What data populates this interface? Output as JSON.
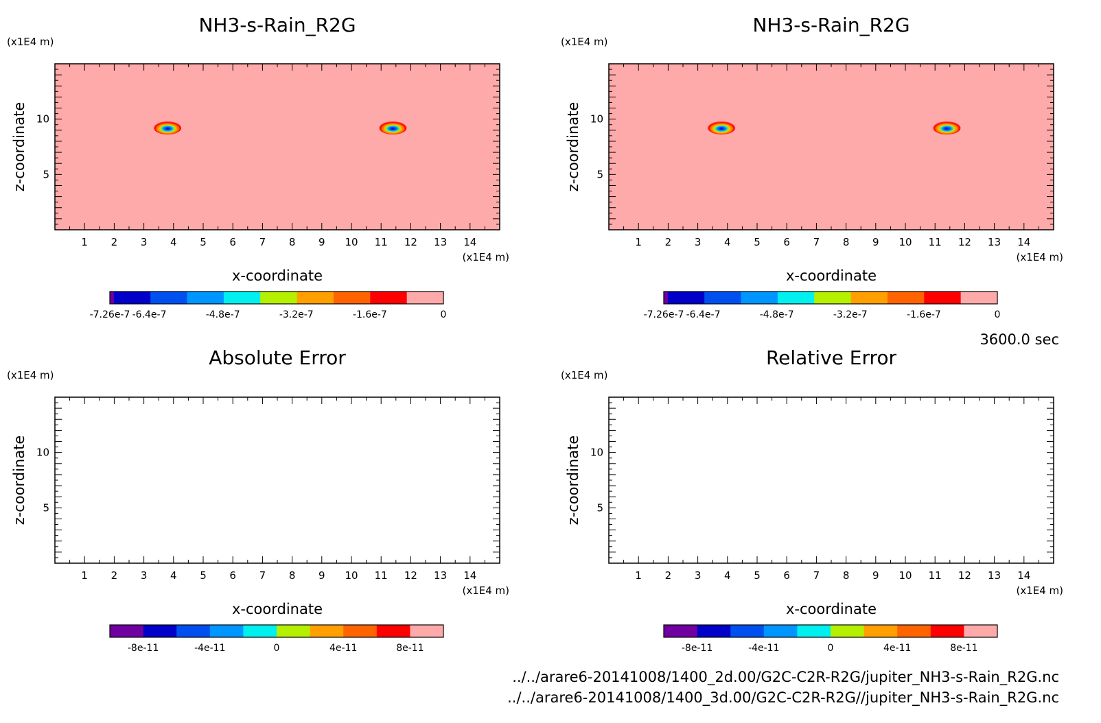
{
  "chart_data": [
    {
      "type": "heatmap",
      "title": "NH3-s-Rain_R2G",
      "xlabel": "x-coordinate",
      "ylabel": "z-coordinate",
      "x_unit": "(x1E4 m)",
      "y_unit": "(x1E4 m)",
      "xlim": [
        0,
        15
      ],
      "ylim": [
        0,
        15
      ],
      "xticks": [
        "1",
        "2",
        "3",
        "4",
        "5",
        "6",
        "7",
        "8",
        "9",
        "10",
        "11",
        "12",
        "13",
        "14"
      ],
      "yticks": [
        "5",
        "10"
      ],
      "background_color": "#ffaaaa",
      "features": [
        {
          "x": 3.8,
          "z": 9.2,
          "min_value": -7.26e-07
        },
        {
          "x": 11.4,
          "z": 9.2,
          "min_value": -7.26e-07
        }
      ],
      "colorbar": {
        "colors": [
          "#7000a0",
          "#0000c8",
          "#0050f0",
          "#0096ff",
          "#00f0f0",
          "#b4f000",
          "#ffa000",
          "#ff6400",
          "#ff0000",
          "#ffaaaa"
        ],
        "labels": [
          "-7.26e-7",
          "-6.4e-7",
          "-4.8e-7",
          "-3.2e-7",
          "-1.6e-7",
          "0"
        ],
        "min": -7.26e-07,
        "max": 0
      }
    },
    {
      "type": "heatmap",
      "title": "NH3-s-Rain_R2G",
      "xlabel": "x-coordinate",
      "ylabel": "z-coordinate",
      "x_unit": "(x1E4 m)",
      "y_unit": "(x1E4 m)",
      "xlim": [
        0,
        15
      ],
      "ylim": [
        0,
        15
      ],
      "xticks": [
        "1",
        "2",
        "3",
        "4",
        "5",
        "6",
        "7",
        "8",
        "9",
        "10",
        "11",
        "12",
        "13",
        "14"
      ],
      "yticks": [
        "5",
        "10"
      ],
      "background_color": "#ffaaaa",
      "features": [
        {
          "x": 3.8,
          "z": 9.2,
          "min_value": -7.26e-07
        },
        {
          "x": 11.4,
          "z": 9.2,
          "min_value": -7.26e-07
        }
      ],
      "colorbar": {
        "colors": [
          "#7000a0",
          "#0000c8",
          "#0050f0",
          "#0096ff",
          "#00f0f0",
          "#b4f000",
          "#ffa000",
          "#ff6400",
          "#ff0000",
          "#ffaaaa"
        ],
        "labels": [
          "-7.26e-7",
          "-6.4e-7",
          "-4.8e-7",
          "-3.2e-7",
          "-1.6e-7",
          "0"
        ],
        "min": -7.26e-07,
        "max": 0
      }
    },
    {
      "type": "heatmap",
      "title": "Absolute Error",
      "xlabel": "x-coordinate",
      "ylabel": "z-coordinate",
      "x_unit": "(x1E4 m)",
      "y_unit": "(x1E4 m)",
      "xlim": [
        0,
        15
      ],
      "ylim": [
        0,
        15
      ],
      "xticks": [
        "1",
        "2",
        "3",
        "4",
        "5",
        "6",
        "7",
        "8",
        "9",
        "10",
        "11",
        "12",
        "13",
        "14"
      ],
      "yticks": [
        "5",
        "10"
      ],
      "background_color": "#ffffff",
      "features": [],
      "colorbar": {
        "colors": [
          "#7000a0",
          "#0000c8",
          "#0050f0",
          "#0096ff",
          "#00f0f0",
          "#b4f000",
          "#ffa000",
          "#ff6400",
          "#ff0000",
          "#ffaaaa"
        ],
        "labels": [
          "-8e-11",
          "-4e-11",
          "0",
          "4e-11",
          "8e-11"
        ],
        "min": -1e-10,
        "max": 1e-10
      }
    },
    {
      "type": "heatmap",
      "title": "Relative Error",
      "xlabel": "x-coordinate",
      "ylabel": "z-coordinate",
      "x_unit": "(x1E4 m)",
      "y_unit": "(x1E4 m)",
      "xlim": [
        0,
        15
      ],
      "ylim": [
        0,
        15
      ],
      "xticks": [
        "1",
        "2",
        "3",
        "4",
        "5",
        "6",
        "7",
        "8",
        "9",
        "10",
        "11",
        "12",
        "13",
        "14"
      ],
      "yticks": [
        "5",
        "10"
      ],
      "background_color": "#ffffff",
      "features": [],
      "colorbar": {
        "colors": [
          "#7000a0",
          "#0000c8",
          "#0050f0",
          "#0096ff",
          "#00f0f0",
          "#b4f000",
          "#ffa000",
          "#ff6400",
          "#ff0000",
          "#ffaaaa"
        ],
        "labels": [
          "-8e-11",
          "-4e-11",
          "0",
          "4e-11",
          "8e-11"
        ],
        "min": -1e-10,
        "max": 1e-10
      }
    }
  ],
  "time_label": "3600.0 sec",
  "footer": {
    "file1": "../../arare6-20141008/1400_2d.00/G2C-C2R-R2G/jupiter_NH3-s-Rain_R2G.nc",
    "file2": "../../arare6-20141008/1400_3d.00/G2C-C2R-R2G//jupiter_NH3-s-Rain_R2G.nc"
  }
}
